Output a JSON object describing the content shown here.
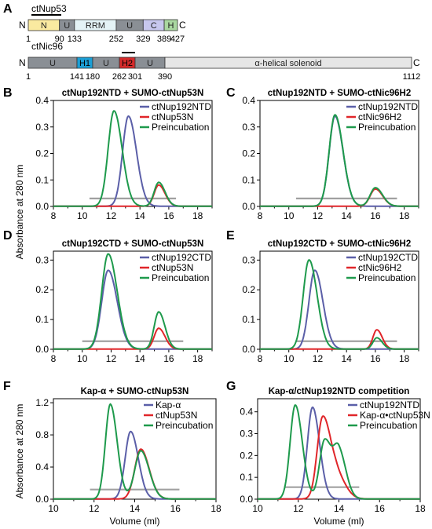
{
  "figure": {
    "domain_map": {
      "panel_label": "A",
      "n_label": "N",
      "c_label": "C",
      "proteins": [
        {
          "name": "ctNup53",
          "domains": [
            {
              "label": "N",
              "start": 1,
              "end": 90,
              "color": "#faeaa0"
            },
            {
              "label": "U",
              "start": 90,
              "end": 133,
              "color": "#8a8f95"
            },
            {
              "label": "RRM",
              "start": 133,
              "end": 252,
              "color": "#e4f3f6"
            },
            {
              "label": "U",
              "start": 252,
              "end": 329,
              "color": "#8a8f95"
            },
            {
              "label": "C",
              "start": 329,
              "end": 389,
              "color": "#c7c7ee"
            },
            {
              "label": "H",
              "start": 389,
              "end": 427,
              "color": "#a9d7a0"
            }
          ],
          "ticks": [
            "1",
            "90",
            "133",
            "252",
            "329",
            "389",
            "427"
          ],
          "bracket": {
            "start": 1,
            "end": 90
          }
        },
        {
          "name": "ctNic96",
          "domains": [
            {
              "label": "U",
              "start": 1,
              "end": 141,
              "color": "#8a8f95"
            },
            {
              "label": "H1",
              "start": 141,
              "end": 180,
              "color": "#1b9fd6"
            },
            {
              "label": "U",
              "start": 180,
              "end": 262,
              "color": "#8a8f95"
            },
            {
              "label": "H2",
              "start": 262,
              "end": 301,
              "color": "#d62a2a"
            },
            {
              "label": "U",
              "start": 301,
              "end": 390,
              "color": "#8a8f95"
            },
            {
              "label": "α-helical solenoid",
              "start": 390,
              "end": 1112,
              "color": "#e6e6e6"
            }
          ],
          "ticks": [
            "1",
            "141",
            "180",
            "262",
            "301",
            "390",
            "1112"
          ],
          "bracket": {
            "start": 262,
            "end": 301
          }
        }
      ]
    },
    "shared_ylabel": "Absorbance at 280 nm",
    "shared_xlabel": "Volume (ml)",
    "colors": {
      "blue": "#5b5fa8",
      "red": "#e0262a",
      "green": "#1e9a4c",
      "gray": "#a0a0a0"
    }
  },
  "chart_data": [
    {
      "panel": "B",
      "type": "line",
      "title": "ctNup192NTD + SUMO-ctNup53N",
      "xlim": [
        8,
        19
      ],
      "ylim": [
        0,
        0.4
      ],
      "xticks": [
        8,
        10,
        12,
        14,
        16,
        18
      ],
      "yticks": [
        0,
        0.1,
        0.2,
        0.3,
        0.4
      ],
      "ytick_labels": [
        "0.0",
        "0.1",
        "0.2",
        "0.3",
        "0.4"
      ],
      "legend_position": "top-right",
      "series": [
        {
          "name": "ctNup192NTD",
          "color": "#5b5fa8",
          "peaks": [
            {
              "x": 13.2,
              "y": 0.34,
              "w": 0.45
            }
          ]
        },
        {
          "name": "ctNup53N",
          "color": "#e0262a",
          "peaks": [
            {
              "x": 15.3,
              "y": 0.08,
              "w": 0.35
            }
          ]
        },
        {
          "name": "Preincubation",
          "color": "#1e9a4c",
          "peaks": [
            {
              "x": 12.2,
              "y": 0.36,
              "w": 0.45
            },
            {
              "x": 15.3,
              "y": 0.09,
              "w": 0.35
            }
          ]
        }
      ],
      "fraction_bar": {
        "x": [
          10.5,
          16.5
        ],
        "y": 0.03
      }
    },
    {
      "panel": "C",
      "type": "line",
      "title": "ctNup192NTD + SUMO-ctNic96H2",
      "xlim": [
        8,
        19
      ],
      "ylim": [
        0,
        0.4
      ],
      "xticks": [
        8,
        10,
        12,
        14,
        16,
        18
      ],
      "yticks": [
        0,
        0.1,
        0.2,
        0.3,
        0.4
      ],
      "ytick_labels": [
        "0.0",
        "0.1",
        "0.2",
        "0.3",
        "0.4"
      ],
      "legend_position": "top-right",
      "series": [
        {
          "name": "ctNup192NTD",
          "color": "#5b5fa8",
          "peaks": [
            {
              "x": 13.2,
              "y": 0.34,
              "w": 0.45
            }
          ]
        },
        {
          "name": "ctNic96H2",
          "color": "#e0262a",
          "peaks": [
            {
              "x": 16.0,
              "y": 0.065,
              "w": 0.4
            }
          ]
        },
        {
          "name": "Preincubation",
          "color": "#1e9a4c",
          "peaks": [
            {
              "x": 13.2,
              "y": 0.345,
              "w": 0.45
            },
            {
              "x": 16.0,
              "y": 0.07,
              "w": 0.4
            }
          ]
        }
      ],
      "fraction_bar": {
        "x": [
          10.5,
          17.5
        ],
        "y": 0.03
      }
    },
    {
      "panel": "D",
      "type": "line",
      "title": "ctNup192CTD + SUMO-ctNup53N",
      "xlim": [
        8,
        19
      ],
      "ylim": [
        0,
        0.33
      ],
      "xticks": [
        8,
        10,
        12,
        14,
        16,
        18
      ],
      "yticks": [
        0,
        0.1,
        0.2,
        0.3
      ],
      "ytick_labels": [
        "0.0",
        "0.1",
        "0.2",
        "0.3"
      ],
      "legend_position": "top-right",
      "series": [
        {
          "name": "ctNup192CTD",
          "color": "#5b5fa8",
          "peaks": [
            {
              "x": 11.8,
              "y": 0.265,
              "w": 0.5
            }
          ]
        },
        {
          "name": "ctNup53N",
          "color": "#e0262a",
          "peaks": [
            {
              "x": 15.3,
              "y": 0.07,
              "w": 0.35
            }
          ]
        },
        {
          "name": "Preincubation",
          "color": "#1e9a4c",
          "peaks": [
            {
              "x": 11.8,
              "y": 0.32,
              "w": 0.5
            },
            {
              "x": 15.3,
              "y": 0.125,
              "w": 0.35
            }
          ]
        }
      ],
      "fraction_bar": {
        "x": [
          10.0,
          17.0
        ],
        "y": 0.027
      }
    },
    {
      "panel": "E",
      "type": "line",
      "title": "ctNup192CTD + SUMO-ctNic96H2",
      "xlim": [
        8,
        19
      ],
      "ylim": [
        0,
        0.33
      ],
      "xticks": [
        8,
        10,
        12,
        14,
        16,
        18
      ],
      "yticks": [
        0,
        0.1,
        0.2,
        0.3
      ],
      "ytick_labels": [
        "0.0",
        "0.1",
        "0.2",
        "0.3"
      ],
      "legend_position": "top-right",
      "series": [
        {
          "name": "ctNup192CTD",
          "color": "#5b5fa8",
          "peaks": [
            {
              "x": 11.8,
              "y": 0.265,
              "w": 0.45
            }
          ]
        },
        {
          "name": "ctNic96H2",
          "color": "#e0262a",
          "peaks": [
            {
              "x": 16.1,
              "y": 0.065,
              "w": 0.3
            }
          ]
        },
        {
          "name": "Preincubation",
          "color": "#1e9a4c",
          "peaks": [
            {
              "x": 11.4,
              "y": 0.3,
              "w": 0.45
            },
            {
              "x": 16.1,
              "y": 0.038,
              "w": 0.3
            }
          ]
        }
      ],
      "fraction_bar": {
        "x": [
          10.5,
          17.5
        ],
        "y": 0.027
      }
    },
    {
      "panel": "F",
      "type": "line",
      "title": "Kap-α + SUMO-ctNup53N",
      "xlim": [
        10,
        18
      ],
      "ylim": [
        0,
        1.25
      ],
      "xticks": [
        10,
        12,
        14,
        16,
        18
      ],
      "yticks": [
        0,
        0.4,
        0.8,
        1.2
      ],
      "ytick_labels": [
        "0.0",
        "0.4",
        "0.8",
        "1.2"
      ],
      "xlabel": "Volume (ml)",
      "legend_position": "top-right",
      "series": [
        {
          "name": "Kap-α",
          "color": "#5b5fa8",
          "peaks": [
            {
              "x": 13.8,
              "y": 0.84,
              "w": 0.3
            }
          ]
        },
        {
          "name": "ctNup53N",
          "color": "#e0262a",
          "peaks": [
            {
              "x": 14.3,
              "y": 0.62,
              "w": 0.33
            }
          ]
        },
        {
          "name": "Preincubation",
          "color": "#1e9a4c",
          "peaks": [
            {
              "x": 12.8,
              "y": 1.18,
              "w": 0.27
            },
            {
              "x": 14.3,
              "y": 0.6,
              "w": 0.33
            }
          ]
        }
      ],
      "fraction_bar": {
        "x": [
          11.8,
          16.2
        ],
        "y": 0.12
      }
    },
    {
      "panel": "G",
      "type": "line",
      "title": "Kap-α/ctNup192NTD competition",
      "xlim": [
        10,
        18
      ],
      "ylim": [
        0,
        0.46
      ],
      "xticks": [
        10,
        12,
        14,
        16,
        18
      ],
      "yticks": [
        0,
        0.1,
        0.2,
        0.3,
        0.4
      ],
      "ytick_labels": [
        "0.0",
        "0.1",
        "0.2",
        "0.3",
        "0.4"
      ],
      "xlabel": "Volume (ml)",
      "legend_position": "top-right",
      "series": [
        {
          "name": "ctNup192NTD",
          "color": "#5b5fa8",
          "peaks": [
            {
              "x": 12.7,
              "y": 0.42,
              "w": 0.28
            }
          ]
        },
        {
          "name": "Kap-α•ctNup53N",
          "color": "#e0262a",
          "peaks": [
            {
              "x": 13.2,
              "y": 0.37,
              "w": 0.3
            },
            {
              "x": 13.9,
              "y": 0.1,
              "w": 0.35
            }
          ]
        },
        {
          "name": "Preincubation",
          "color": "#1e9a4c",
          "peaks": [
            {
              "x": 11.85,
              "y": 0.43,
              "w": 0.28
            },
            {
              "x": 13.3,
              "y": 0.27,
              "w": 0.28
            },
            {
              "x": 14.0,
              "y": 0.21,
              "w": 0.28
            }
          ]
        }
      ],
      "fraction_bar": {
        "x": [
          11.3,
          15.0
        ],
        "y": 0.055
      }
    }
  ]
}
